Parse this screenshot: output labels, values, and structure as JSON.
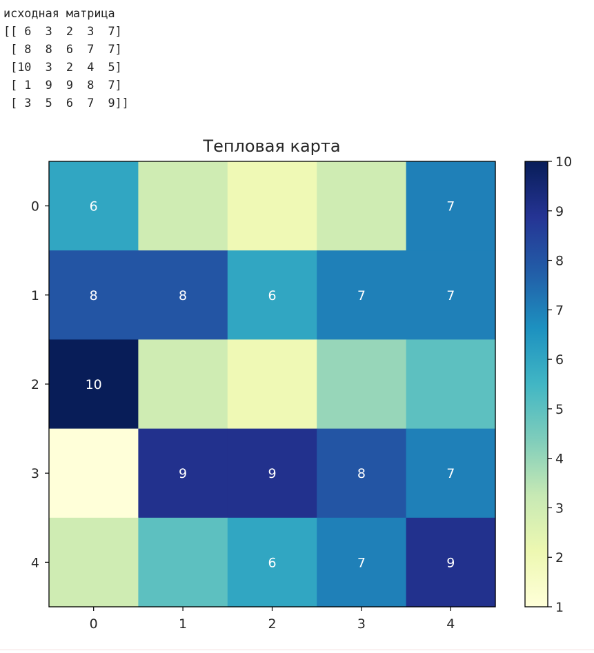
{
  "output": {
    "label": "исходная матрица",
    "matrix_lines": [
      "[[ 6  3  2  3  7]",
      " [ 8  8  6  7  7]",
      " [10  3  2  4  5]",
      " [ 1  9  9  8  7]",
      " [ 3  5  6  7  9]]"
    ]
  },
  "chart_data": {
    "type": "heatmap",
    "title": "Тепловая карта",
    "colormap": "YlGnBu",
    "matrix": [
      [
        6,
        3,
        2,
        3,
        7
      ],
      [
        8,
        8,
        6,
        7,
        7
      ],
      [
        10,
        3,
        2,
        4,
        5
      ],
      [
        1,
        9,
        9,
        8,
        7
      ],
      [
        3,
        5,
        6,
        7,
        9
      ]
    ],
    "x_ticks": [
      "0",
      "1",
      "2",
      "3",
      "4"
    ],
    "y_ticks": [
      "0",
      "1",
      "2",
      "3",
      "4"
    ],
    "colorbar": {
      "min": 1,
      "max": 10,
      "ticks": [
        "1",
        "2",
        "3",
        "4",
        "5",
        "6",
        "7",
        "8",
        "9",
        "10"
      ]
    },
    "annotation_threshold": 5,
    "annotation_color": "#ffffff"
  }
}
